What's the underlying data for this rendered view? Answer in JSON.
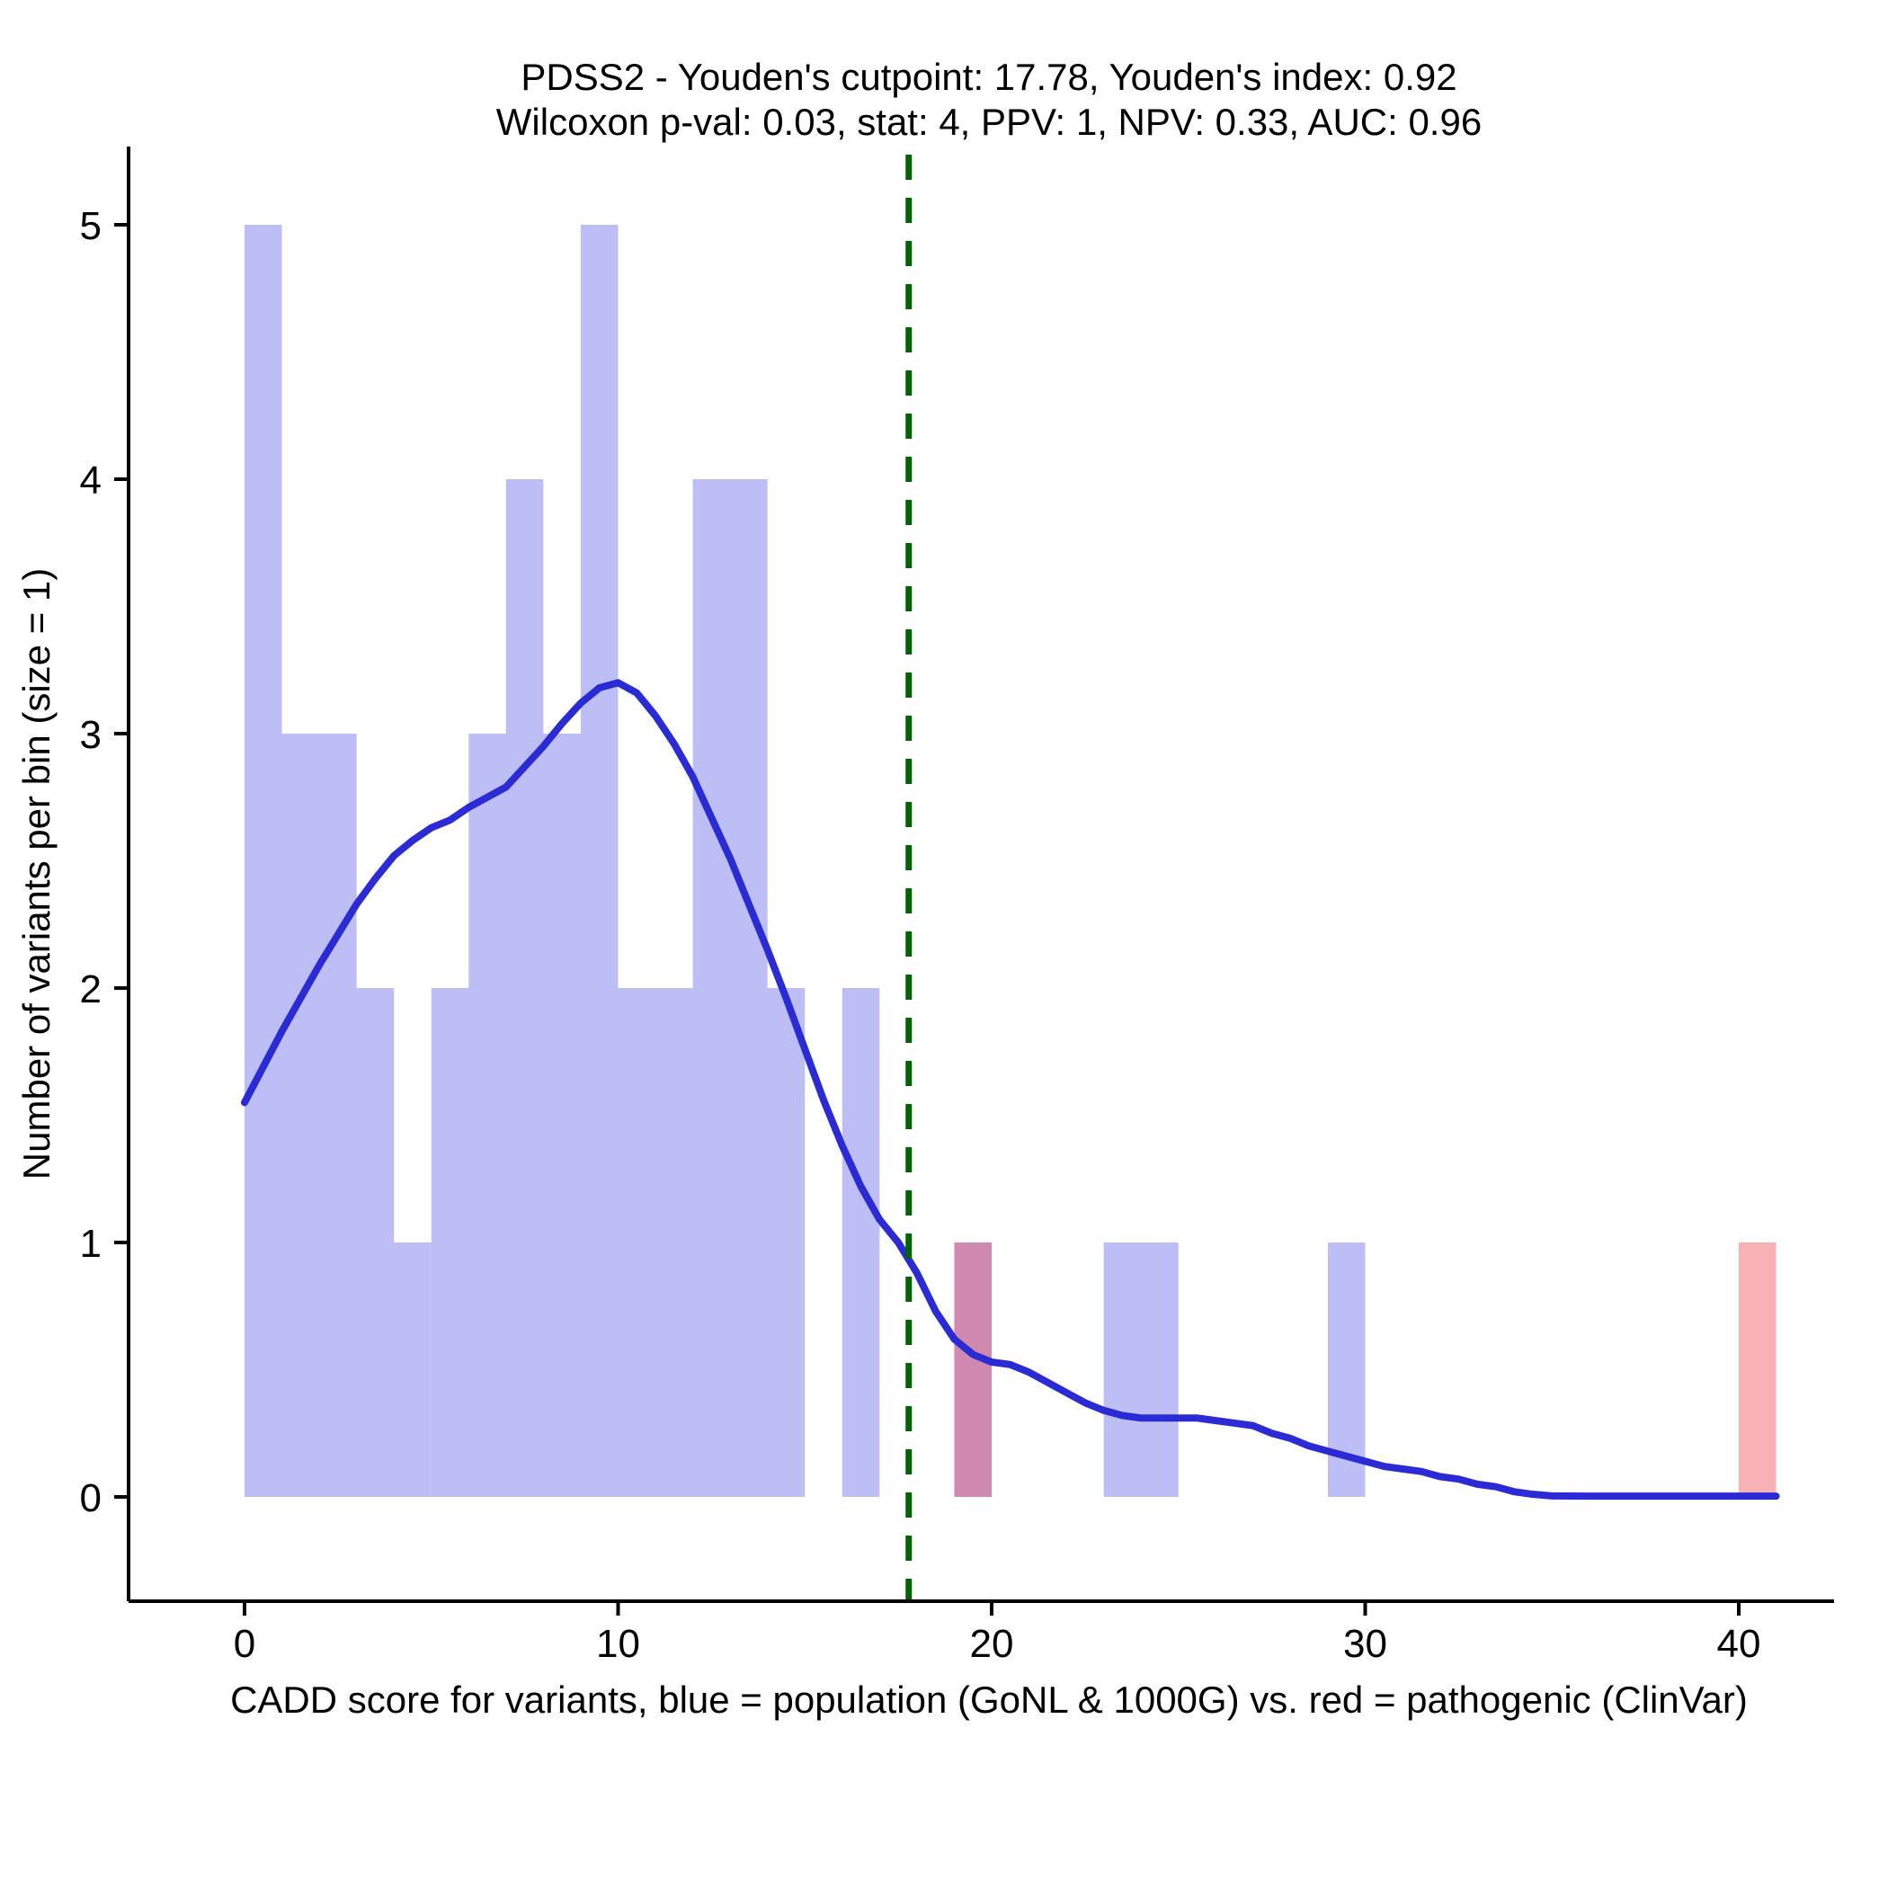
{
  "chart_data": {
    "type": "bar",
    "subtype": "histogram-with-density",
    "title": "PDSS2 - Youden's cutpoint: 17.78, Youden's index: 0.92",
    "subtitle": "Wilcoxon p-val: 0.03, stat: 4, PPV: 1, NPV: 0.33, AUC: 0.96",
    "xlabel": "CADD score for variants, blue = population (GoNL & 1000G) vs. red = pathogenic (ClinVar)",
    "ylabel": "Number of variants per bin (size = 1)",
    "x_ticks": [
      0,
      10,
      20,
      30,
      40
    ],
    "y_ticks": [
      0,
      1,
      2,
      3,
      4,
      5
    ],
    "xlim": [
      -3.1,
      42.5
    ],
    "ylim": [
      -0.41,
      5.35
    ],
    "bin_size": 1,
    "grid": "off",
    "legend": "none",
    "series": [
      {
        "name": "population (GoNL & 1000G)",
        "color": "rgba(70,70,230,0.35)",
        "bins": [
          {
            "x0": 0,
            "count": 5
          },
          {
            "x0": 1,
            "count": 3
          },
          {
            "x0": 2,
            "count": 3
          },
          {
            "x0": 3,
            "count": 2
          },
          {
            "x0": 4,
            "count": 1
          },
          {
            "x0": 5,
            "count": 2
          },
          {
            "x0": 6,
            "count": 3
          },
          {
            "x0": 7,
            "count": 4
          },
          {
            "x0": 8,
            "count": 3
          },
          {
            "x0": 9,
            "count": 5
          },
          {
            "x0": 10,
            "count": 2
          },
          {
            "x0": 11,
            "count": 2
          },
          {
            "x0": 12,
            "count": 4
          },
          {
            "x0": 13,
            "count": 4
          },
          {
            "x0": 14,
            "count": 2
          },
          {
            "x0": 16,
            "count": 2
          },
          {
            "x0": 19,
            "count": 1
          },
          {
            "x0": 23,
            "count": 1
          },
          {
            "x0": 24,
            "count": 1
          },
          {
            "x0": 29,
            "count": 1
          }
        ]
      },
      {
        "name": "pathogenic (ClinVar)",
        "color": "rgba(235,50,60,0.38)",
        "bins": [
          {
            "x0": 19,
            "count": 1
          },
          {
            "x0": 40,
            "count": 1
          }
        ]
      }
    ],
    "density_line": {
      "name": "scaled density of population variants",
      "color": "#2b2bd6",
      "points": [
        [
          0,
          1.55
        ],
        [
          0.5,
          1.69
        ],
        [
          1,
          1.83
        ],
        [
          1.5,
          1.96
        ],
        [
          2,
          2.09
        ],
        [
          2.5,
          2.21
        ],
        [
          3,
          2.33
        ],
        [
          3.5,
          2.43
        ],
        [
          4,
          2.52
        ],
        [
          4.5,
          2.58
        ],
        [
          5,
          2.63
        ],
        [
          5.5,
          2.66
        ],
        [
          6,
          2.71
        ],
        [
          6.5,
          2.75
        ],
        [
          7,
          2.79
        ],
        [
          7.5,
          2.87
        ],
        [
          8,
          2.95
        ],
        [
          8.5,
          3.04
        ],
        [
          9,
          3.12
        ],
        [
          9.5,
          3.18
        ],
        [
          10,
          3.2
        ],
        [
          10.5,
          3.16
        ],
        [
          11,
          3.07
        ],
        [
          11.5,
          2.96
        ],
        [
          12,
          2.83
        ],
        [
          12.5,
          2.67
        ],
        [
          13,
          2.51
        ],
        [
          13.5,
          2.33
        ],
        [
          14,
          2.15
        ],
        [
          14.5,
          1.96
        ],
        [
          15,
          1.76
        ],
        [
          15.5,
          1.56
        ],
        [
          16,
          1.38
        ],
        [
          16.5,
          1.22
        ],
        [
          17,
          1.09
        ],
        [
          17.5,
          1.0
        ],
        [
          18,
          0.88
        ],
        [
          18.5,
          0.73
        ],
        [
          19,
          0.62
        ],
        [
          19.5,
          0.56
        ],
        [
          20,
          0.53
        ],
        [
          20.5,
          0.52
        ],
        [
          21,
          0.49
        ],
        [
          21.5,
          0.45
        ],
        [
          22,
          0.41
        ],
        [
          22.5,
          0.37
        ],
        [
          23,
          0.34
        ],
        [
          23.5,
          0.32
        ],
        [
          24,
          0.31
        ],
        [
          24.5,
          0.31
        ],
        [
          25,
          0.31
        ],
        [
          25.5,
          0.31
        ],
        [
          26,
          0.3
        ],
        [
          26.5,
          0.29
        ],
        [
          27,
          0.28
        ],
        [
          27.5,
          0.25
        ],
        [
          28,
          0.23
        ],
        [
          28.5,
          0.2
        ],
        [
          29,
          0.18
        ],
        [
          29.5,
          0.16
        ],
        [
          30,
          0.14
        ],
        [
          30.5,
          0.12
        ],
        [
          31,
          0.11
        ],
        [
          31.5,
          0.1
        ],
        [
          32,
          0.08
        ],
        [
          32.5,
          0.07
        ],
        [
          33,
          0.05
        ],
        [
          33.5,
          0.04
        ],
        [
          34,
          0.02
        ],
        [
          34.5,
          0.01
        ],
        [
          35,
          0.004
        ],
        [
          36,
          0.003
        ],
        [
          37,
          0.003
        ],
        [
          38,
          0.003
        ],
        [
          39,
          0.003
        ],
        [
          40,
          0.003
        ],
        [
          41,
          0.003
        ]
      ]
    },
    "cutpoint_line": {
      "x": 17.78,
      "label": "Youden's cutpoint",
      "color": "#006400",
      "style": "dashed"
    },
    "axis_color": "#000000",
    "stats": {
      "gene": "PDSS2",
      "youdens_cutpoint": 17.78,
      "youdens_index": 0.92,
      "wilcoxon_p_val": 0.03,
      "stat": 4,
      "ppv": 1,
      "npv": 0.33,
      "auc": 0.96
    }
  }
}
